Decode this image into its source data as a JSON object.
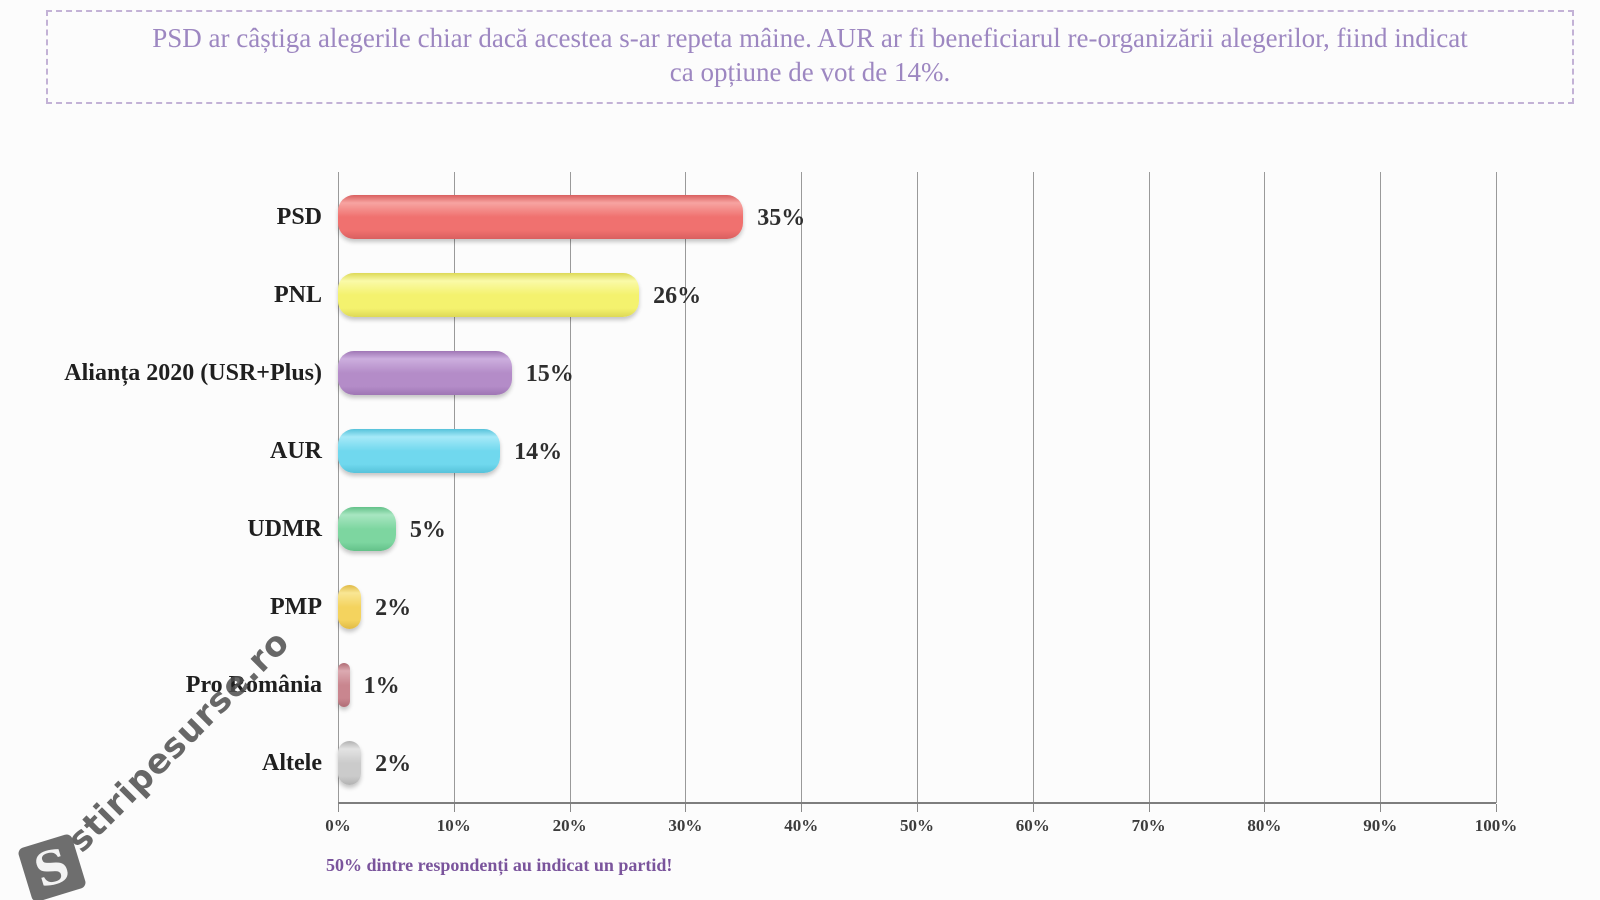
{
  "header": {
    "lines": [
      "PSD ar câștiga alegerile chiar dacă acestea s-ar repeta mâine. AUR ar fi beneficiarul re-organizării alegerilor, fiind indicat",
      "ca opțiune de vot de 14%."
    ],
    "text_color": "#9d87c1",
    "border_color": "#c3b2d6"
  },
  "footer": {
    "note": "50% dintre respondenți au indicat un partid!",
    "color": "#7a549c"
  },
  "watermark": {
    "logo_letter": "S",
    "text": "stiripesurse.ro"
  },
  "chart_data": {
    "type": "bar",
    "orientation": "horizontal",
    "title": "",
    "xlabel": "",
    "ylabel": "",
    "xlim": [
      0,
      100
    ],
    "grid": "vertical",
    "x_ticks": [
      "0%",
      "10%",
      "20%",
      "30%",
      "40%",
      "50%",
      "60%",
      "70%",
      "80%",
      "90%",
      "100%"
    ],
    "categories": [
      "PSD",
      "PNL",
      "Alianța 2020 (USR+Plus)",
      "AUR",
      "UDMR",
      "PMP",
      "Pro România",
      "Altele"
    ],
    "values": [
      35,
      26,
      15,
      14,
      5,
      2,
      1,
      2
    ],
    "bars": [
      {
        "label": "PSD",
        "value": 35,
        "display": "35%",
        "color": "#f0716f",
        "light": "#f7a4a1",
        "dark": "#d95f5f"
      },
      {
        "label": "PNL",
        "value": 26,
        "display": "26%",
        "color": "#f4f26e",
        "light": "#fafaa8",
        "dark": "#ddd957"
      },
      {
        "label": "Alianța 2020 (USR+Plus)",
        "value": 15,
        "display": "15%",
        "color": "#b48cc8",
        "light": "#ccaede",
        "dark": "#9f76b5"
      },
      {
        "label": "AUR",
        "value": 14,
        "display": "14%",
        "color": "#70d8ee",
        "light": "#a5e9f8",
        "dark": "#56c2da"
      },
      {
        "label": "UDMR",
        "value": 5,
        "display": "5%",
        "color": "#7dd6a0",
        "light": "#a8e6c1",
        "dark": "#63c189"
      },
      {
        "label": "PMP",
        "value": 2,
        "display": "2%",
        "color": "#f4d35e",
        "light": "#f9e694",
        "dark": "#e0ba45"
      },
      {
        "label": "Pro România",
        "value": 1,
        "display": "1%",
        "color": "#c9868f",
        "light": "#dcaab1",
        "dark": "#b06d76"
      },
      {
        "label": "Altele",
        "value": 2,
        "display": "2%",
        "color": "#cbcbcb",
        "light": "#e3e3e3",
        "dark": "#b2b2b2"
      }
    ]
  }
}
